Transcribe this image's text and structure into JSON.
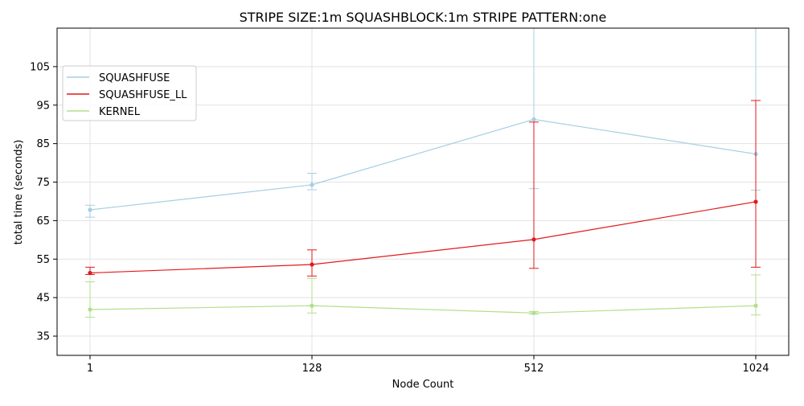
{
  "chart_data": {
    "type": "line",
    "title": "STRIPE SIZE:1m SQUASHBLOCK:1m STRIPE PATTERN:one",
    "xlabel": "Node Count",
    "ylabel": "total time (seconds)",
    "categories": [
      "1",
      "128",
      "512",
      "1024"
    ],
    "ylim": [
      30,
      115
    ],
    "yticks": [
      35,
      45,
      55,
      65,
      75,
      85,
      95,
      105
    ],
    "grid": true,
    "legend_position": "upper-left",
    "series": [
      {
        "name": "SQUASHFUSE",
        "color": "#a6cee3",
        "values": [
          67.8,
          74.3,
          91.3,
          82.3
        ],
        "err_low": [
          65.9,
          73.0,
          73.3,
          72.9
        ],
        "err_high": [
          69.0,
          77.3,
          130.0,
          130.0
        ]
      },
      {
        "name": "SQUASHFUSE_LL",
        "color": "#e31a1c",
        "values": [
          51.4,
          53.6,
          60.1,
          69.9
        ],
        "err_low": [
          51.0,
          50.6,
          52.6,
          52.9
        ],
        "err_high": [
          52.9,
          57.4,
          90.6,
          96.2
        ]
      },
      {
        "name": "KERNEL",
        "color": "#b2df8a",
        "values": [
          41.9,
          42.9,
          41.0,
          42.9
        ],
        "err_low": [
          39.9,
          41.0,
          40.7,
          40.5
        ],
        "err_high": [
          49.1,
          50.0,
          41.4,
          50.9
        ]
      }
    ]
  }
}
